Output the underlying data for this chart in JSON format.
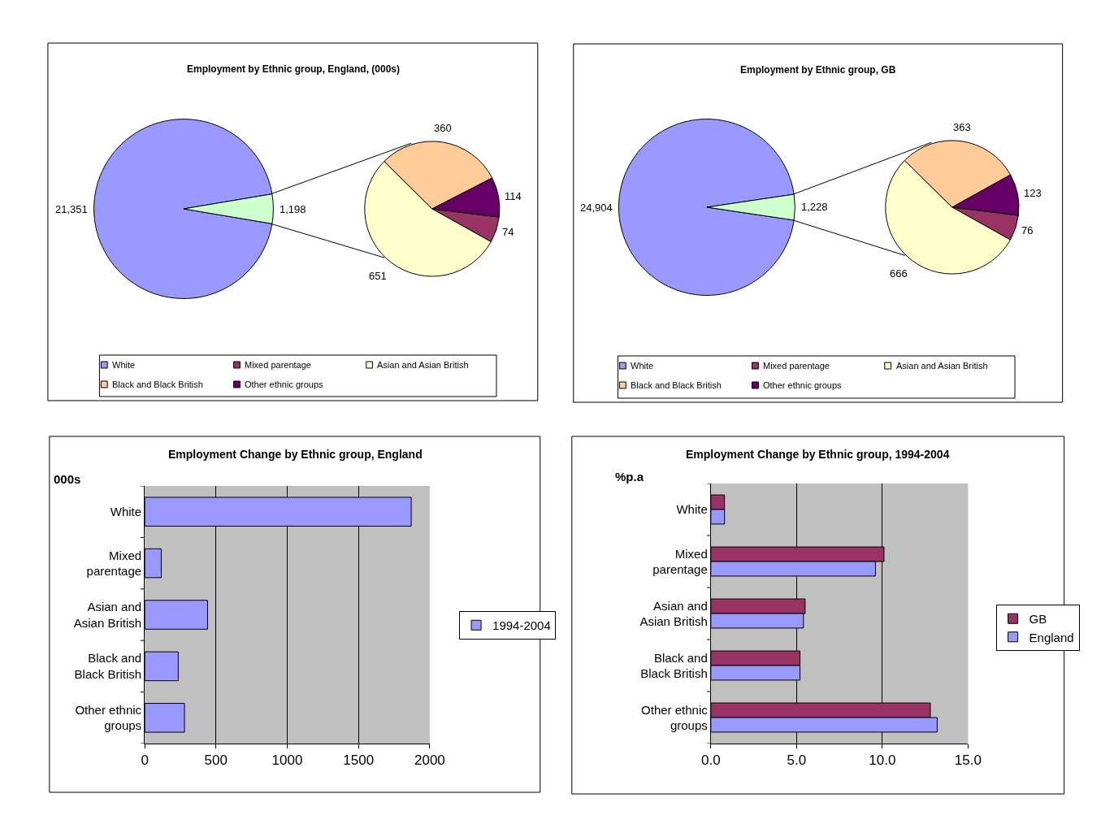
{
  "chart_data": [
    {
      "type": "pie",
      "title": "Employment by Ethnic group, England, (000s)",
      "categories": [
        "White",
        null
      ],
      "values": [
        21351,
        1198
      ],
      "value_labels": [
        "21,351",
        "1,198"
      ],
      "colors": [
        "#9999ff",
        "#ccffcc"
      ],
      "legend": "bottom"
    },
    {
      "type": "pie",
      "categories": [
        "Mixed parentage",
        "Asian and Asian British",
        "Black and Black British",
        "Other ethnic groups"
      ],
      "values": [
        74,
        651,
        360,
        114
      ],
      "colors": [
        "#993366",
        "#ffffcc",
        "#ffcc99",
        "#660066"
      ],
      "data_labels": true,
      "legend": "bottom"
    },
    {
      "type": "pie",
      "title": "Employment by Ethnic group, GB",
      "categories": [
        "White",
        null
      ],
      "values": [
        24904,
        1228
      ],
      "value_labels": [
        "24,904",
        "1,228"
      ],
      "colors": [
        "#9999ff",
        "#ccffcc"
      ],
      "legend": "bottom"
    },
    {
      "type": "pie",
      "categories": [
        "Mixed parentage",
        "Asian and Asian British",
        "Black and Black British",
        "Other ethnic groups"
      ],
      "values": [
        76,
        666,
        363,
        123
      ],
      "colors": [
        "#993366",
        "#ffffcc",
        "#ffcc99",
        "#660066"
      ],
      "data_labels": true,
      "legend": "bottom"
    },
    {
      "type": "bar",
      "orientation": "horizontal",
      "title": "Employment Change by Ethnic group, England",
      "ylabel": "000s",
      "categories": [
        "White",
        "Mixed parentage",
        "Asian and Asian British",
        "Black and Black British",
        "Other ethnic groups"
      ],
      "series": [
        {
          "name": "1994-2004",
          "color": "#9999ff",
          "values": [
            1870,
            116,
            441,
            235,
            279
          ]
        }
      ],
      "xlim": [
        0,
        2000
      ],
      "xticks": [
        0,
        500,
        1000,
        1500,
        2000
      ],
      "grid": "x",
      "legend": "right"
    },
    {
      "type": "bar",
      "orientation": "horizontal",
      "title": "Employment Change by Ethnic group, 1994-2004",
      "ylabel": "%p.a",
      "categories": [
        "White",
        "Mixed parentage",
        "Asian and Asian British",
        "Black and Black British",
        "Other ethnic groups"
      ],
      "series": [
        {
          "name": "GB",
          "color": "#993366",
          "values": [
            0.8,
            10.1,
            5.5,
            5.2,
            12.8
          ]
        },
        {
          "name": "England",
          "color": "#9999ff",
          "values": [
            0.8,
            9.6,
            5.4,
            5.2,
            13.2
          ]
        }
      ],
      "xlim": [
        0,
        15
      ],
      "xticks": [
        {
          "value": 0,
          "label": "0.0"
        },
        {
          "value": 5,
          "label": "5.0"
        },
        {
          "value": 10,
          "label": "10.0"
        },
        {
          "value": 15,
          "label": "15.0"
        }
      ],
      "grid": "x",
      "legend": "right"
    }
  ]
}
